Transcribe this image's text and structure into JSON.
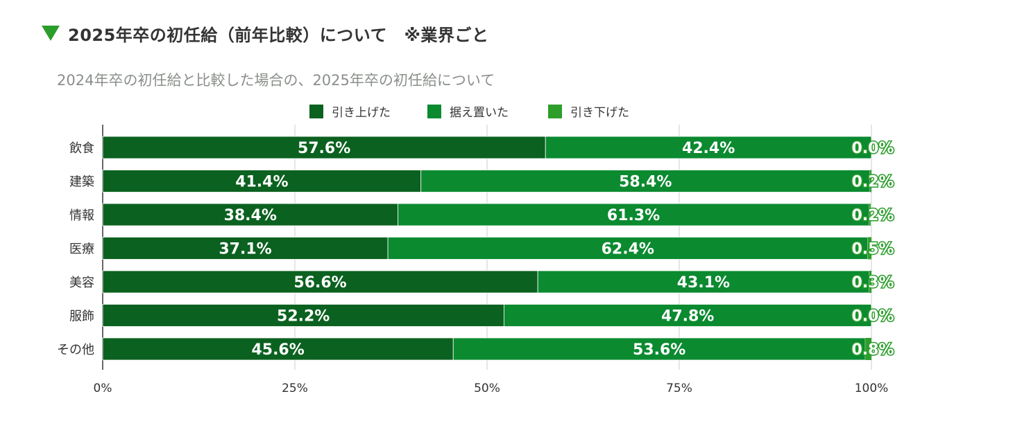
{
  "heading": "2025年卒の初任給（前年比較）について　※業界ごと",
  "chart_data": {
    "type": "bar",
    "orientation": "horizontal",
    "stacked": "percent",
    "title": "2024年卒の初任給と比較した場合の、2025年卒の初任給について",
    "categories": [
      "飲食",
      "建築",
      "情報",
      "医療",
      "美容",
      "服飾",
      "その他"
    ],
    "series": [
      {
        "name": "引き上げた",
        "color": "#0b611f",
        "values": [
          57.6,
          41.4,
          38.4,
          37.1,
          56.6,
          52.2,
          45.6
        ]
      },
      {
        "name": "据え置いた",
        "color": "#0b8a30",
        "values": [
          42.4,
          58.4,
          61.3,
          62.4,
          43.1,
          47.8,
          53.6
        ]
      },
      {
        "name": "引き下げた",
        "color": "#2e9e2a",
        "values": [
          0.0,
          0.2,
          0.2,
          0.5,
          0.3,
          0.0,
          0.8
        ]
      }
    ],
    "data_labels": [
      [
        "57.6%",
        "42.4%",
        "0.0%"
      ],
      [
        "41.4%",
        "58.4%",
        "0.2%"
      ],
      [
        "38.4%",
        "61.3%",
        "0.2%"
      ],
      [
        "37.1%",
        "62.4%",
        "0.5%"
      ],
      [
        "56.6%",
        "43.1%",
        "0.3%"
      ],
      [
        "52.2%",
        "47.8%",
        "0.0%"
      ],
      [
        "45.6%",
        "53.6%",
        "0.8%"
      ]
    ],
    "xlim": [
      0,
      100
    ],
    "xticks": [
      "0%",
      "25%",
      "50%",
      "75%",
      "100%"
    ],
    "grid": true,
    "legend_position": "top"
  }
}
